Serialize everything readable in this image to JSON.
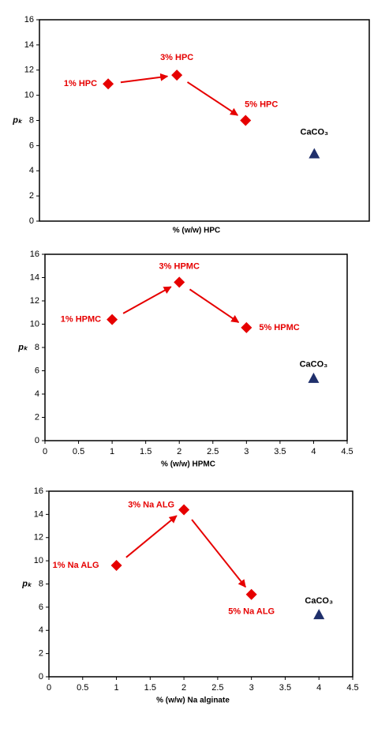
{
  "charts": [
    {
      "type": "scatter",
      "x_label": "% (w/w) HPC",
      "y_label": "pₖ",
      "xlim": [
        0,
        4.8
      ],
      "ylim": [
        0,
        16
      ],
      "yticks": [
        0,
        2,
        4,
        6,
        8,
        10,
        12,
        14,
        16
      ],
      "series": [
        {
          "marker": "diamond",
          "color": "#e60000",
          "x": [
            1,
            2,
            3
          ],
          "values": [
            10.9,
            11.6,
            8.0
          ],
          "labels": [
            "1% HPC",
            "3% HPC",
            "5% HPC"
          ],
          "arrows": true
        },
        {
          "marker": "triangle",
          "color": "#1f2f6b",
          "x": [
            4
          ],
          "values": [
            5.3
          ],
          "labels": [
            "CaCO₃"
          ]
        }
      ]
    },
    {
      "type": "scatter",
      "x_label": "% (w/w) HPMC",
      "y_label": "pₖ",
      "xlim": [
        0,
        4.5
      ],
      "ylim": [
        0,
        16
      ],
      "xticks": [
        0,
        0.5,
        1,
        1.5,
        2,
        2.5,
        3,
        3.5,
        4,
        4.5
      ],
      "yticks": [
        0,
        2,
        4,
        6,
        8,
        10,
        12,
        14,
        16
      ],
      "series": [
        {
          "marker": "diamond",
          "color": "#e60000",
          "x": [
            1,
            2,
            3
          ],
          "values": [
            10.4,
            13.6,
            9.7
          ],
          "labels": [
            "1% HPMC",
            "3% HPMC",
            "5% HPMC"
          ],
          "arrows": true
        },
        {
          "marker": "triangle",
          "color": "#1f2f6b",
          "x": [
            4
          ],
          "values": [
            5.3
          ],
          "labels": [
            "CaCO₃"
          ]
        }
      ]
    },
    {
      "type": "scatter",
      "x_label": "% (w/w) Na alginate",
      "y_label": "pₖ",
      "xlim": [
        0,
        4.5
      ],
      "ylim": [
        0,
        16
      ],
      "xticks": [
        0,
        0.5,
        1,
        1.5,
        2,
        2.5,
        3,
        3.5,
        4,
        4.5
      ],
      "yticks": [
        0,
        2,
        4,
        6,
        8,
        10,
        12,
        14,
        16
      ],
      "series": [
        {
          "marker": "diamond",
          "color": "#e60000",
          "x": [
            1,
            2,
            3
          ],
          "values": [
            9.6,
            14.4,
            7.1
          ],
          "labels": [
            "1% Na ALG",
            "3% Na ALG",
            "5% Na ALG"
          ],
          "arrows": true
        },
        {
          "marker": "triangle",
          "color": "#1f2f6b",
          "x": [
            4
          ],
          "values": [
            5.3
          ],
          "labels": [
            "CaCO₃"
          ]
        }
      ]
    }
  ]
}
